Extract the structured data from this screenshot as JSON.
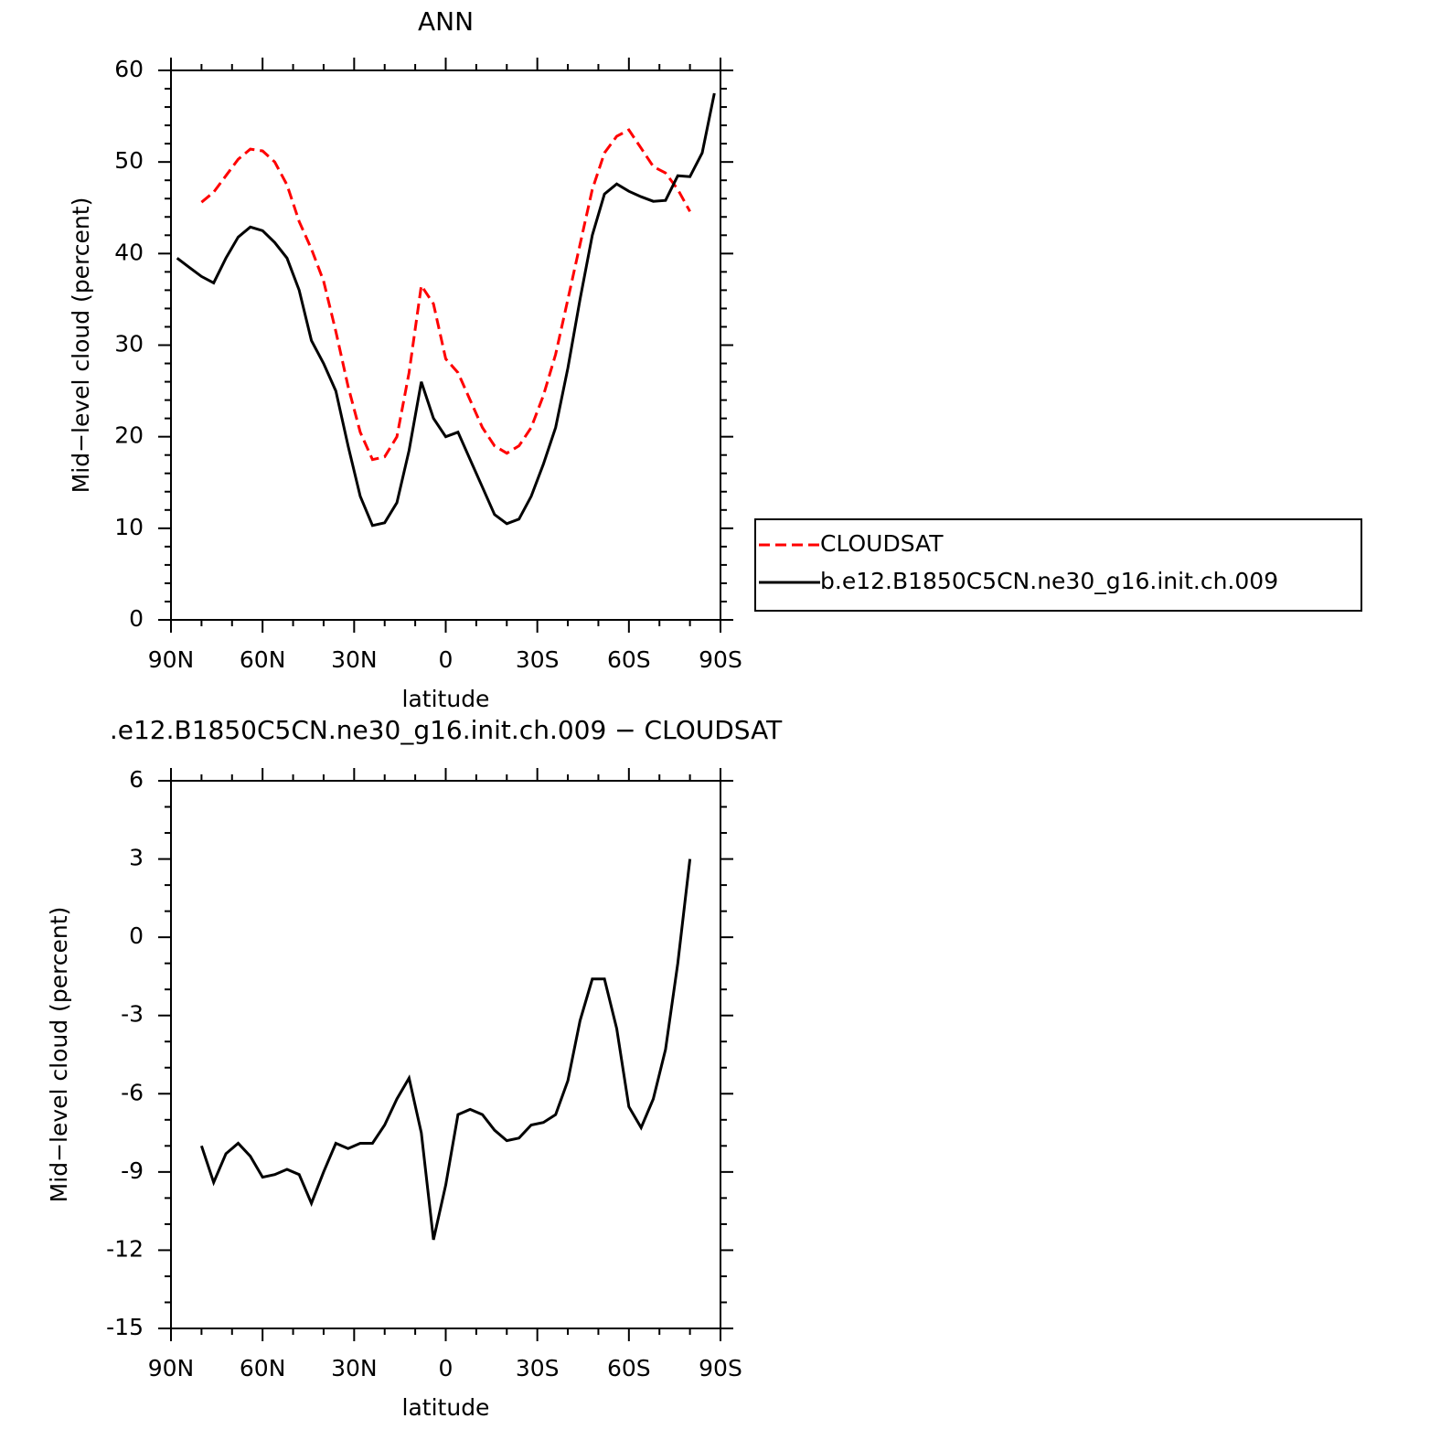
{
  "chart_data": [
    {
      "type": "line",
      "title": "ANN",
      "xlabel": "latitude",
      "ylabel": "Mid−level cloud (percent)",
      "x": [
        88,
        84,
        80,
        76,
        72,
        68,
        64,
        60,
        56,
        52,
        48,
        44,
        40,
        36,
        32,
        28,
        24,
        20,
        16,
        12,
        8,
        4,
        0,
        -4,
        -8,
        -12,
        -16,
        -20,
        -24,
        -28,
        -32,
        -36,
        -40,
        -44,
        -48,
        -52,
        -56,
        -60,
        -64,
        -68,
        -72,
        -76,
        -80,
        -84,
        -88
      ],
      "series": [
        {
          "name": "CLOUDSAT",
          "color": "#ff0000",
          "dash": "dashed",
          "values": [
            null,
            null,
            45.6,
            46.7,
            48.5,
            50.3,
            51.4,
            51.2,
            50,
            47.5,
            43.5,
            40.5,
            37,
            31.5,
            25.5,
            20.5,
            17.5,
            17.8,
            20,
            27,
            36.5,
            34.5,
            28.5,
            27,
            24,
            21,
            19,
            18.2,
            19,
            21,
            24.5,
            29,
            35,
            41,
            47,
            51,
            52.8,
            53.5,
            51.5,
            49.5,
            48.8,
            47,
            44.6,
            null,
            null
          ]
        },
        {
          "name": "b.e12.B1850C5CN.ne30_g16.init.ch.009",
          "color": "#000000",
          "dash": "solid",
          "values": [
            39.5,
            38.5,
            37.5,
            36.8,
            39.5,
            41.8,
            42.9,
            42.5,
            41.2,
            39.5,
            36,
            30.5,
            28,
            25,
            19,
            13.5,
            10.3,
            10.6,
            12.8,
            18.5,
            26,
            22,
            20,
            20.5,
            17.5,
            14.5,
            11.5,
            10.5,
            11,
            13.5,
            17,
            21,
            27.5,
            35,
            42,
            46.5,
            47.6,
            46.8,
            46.2,
            45.7,
            45.8,
            48.5,
            48.4,
            51,
            57.5
          ]
        }
      ],
      "xlim": [
        90,
        -90
      ],
      "xticks": [
        {
          "value": 90,
          "label": "90N"
        },
        {
          "value": 60,
          "label": "60N"
        },
        {
          "value": 30,
          "label": "30N"
        },
        0,
        {
          "value": -30,
          "label": "30S"
        },
        {
          "value": -60,
          "label": "60S"
        },
        {
          "value": -90,
          "label": "90S"
        }
      ],
      "ylim": [
        0,
        60
      ],
      "yticks": [
        0,
        10,
        20,
        30,
        40,
        50,
        60
      ],
      "legend": "right"
    },
    {
      "type": "line",
      "title": ".e12.B1850C5CN.ne30_g16.init.ch.009 − CLOUDSAT",
      "xlabel": "latitude",
      "ylabel": "Mid−level cloud (percent)",
      "x": [
        88,
        84,
        80,
        76,
        72,
        68,
        64,
        60,
        56,
        52,
        48,
        44,
        40,
        36,
        32,
        28,
        24,
        20,
        16,
        12,
        8,
        4,
        0,
        -4,
        -8,
        -12,
        -16,
        -20,
        -24,
        -28,
        -32,
        -36,
        -40,
        -44,
        -48,
        -52,
        -56,
        -60,
        -64,
        -68,
        -72,
        -76,
        -80,
        -84,
        -88
      ],
      "series": [
        {
          "color": "#000000",
          "dash": "solid",
          "values": [
            null,
            null,
            -8,
            -9.4,
            -8.3,
            -7.9,
            -8.4,
            -9.2,
            -9.1,
            -8.9,
            -9.1,
            -10.2,
            -9,
            -7.9,
            -8.1,
            -7.9,
            -7.9,
            -7.2,
            -6.2,
            -5.4,
            -7.5,
            -11.6,
            -9.5,
            -6.8,
            -6.6,
            -6.8,
            -7.4,
            -7.8,
            -7.7,
            -7.2,
            -7.1,
            -6.8,
            -5.5,
            -3.2,
            -1.6,
            -1.6,
            -3.5,
            -6.5,
            -7.3,
            -6.2,
            -4.3,
            -1,
            3,
            null,
            null
          ]
        }
      ],
      "xlim": [
        90,
        -90
      ],
      "xticks": [
        {
          "value": 90,
          "label": "90N"
        },
        {
          "value": 60,
          "label": "60N"
        },
        {
          "value": 30,
          "label": "30N"
        },
        0,
        {
          "value": -30,
          "label": "30S"
        },
        {
          "value": -60,
          "label": "60S"
        },
        {
          "value": -90,
          "label": "90S"
        }
      ],
      "ylim": [
        -15,
        6
      ],
      "yticks": [
        -15,
        -12,
        -9,
        -6,
        -3,
        0,
        3,
        6
      ]
    }
  ]
}
